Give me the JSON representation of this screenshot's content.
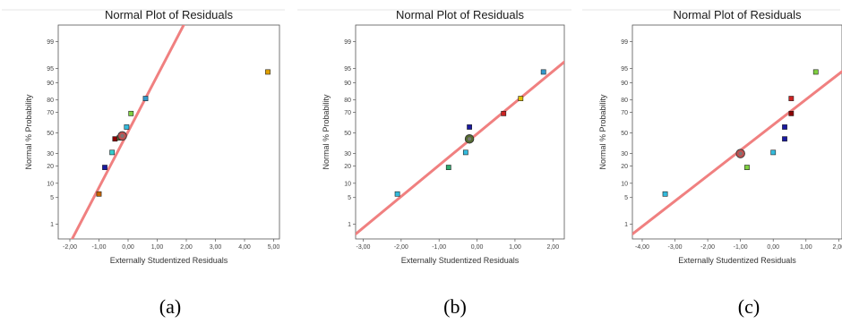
{
  "chart_data": [
    {
      "type": "scatter",
      "title": "Normal Plot of Residuals",
      "xlabel": "Externally Studentized Residuals",
      "ylabel": "Normal % Probability",
      "xlim": [
        -2.4,
        5.2
      ],
      "xticks": [
        "-2,00",
        "-1,00",
        "0,00",
        "1,00",
        "2,00",
        "3,00",
        "4,00",
        "5,00"
      ],
      "xtick_values": [
        -2,
        -1,
        0,
        1,
        2,
        3,
        4,
        5
      ],
      "yticks": [
        "1",
        "5",
        "10",
        "20",
        "30",
        "50",
        "70",
        "80",
        "90",
        "95",
        "99"
      ],
      "ytick_values": [
        1,
        5,
        10,
        20,
        30,
        50,
        70,
        80,
        90,
        95,
        99
      ],
      "grid": false,
      "line": {
        "x": [
          -2.3,
          2.0
        ],
        "p": [
          0.06,
          99.8
        ],
        "color": "#f08080"
      },
      "points": [
        {
          "x": -1.0,
          "p": 6,
          "color": "#c86400"
        },
        {
          "x": -0.8,
          "p": 19,
          "color": "#1a1aa0"
        },
        {
          "x": -0.55,
          "p": 31,
          "color": "#33cccc"
        },
        {
          "x": -0.45,
          "p": 44,
          "color": "#8b0000"
        },
        {
          "x": -0.3,
          "p": 45,
          "color": "#556b2f"
        },
        {
          "x": -0.05,
          "p": 56,
          "color": "#33bbdd"
        },
        {
          "x": 0.1,
          "p": 69,
          "color": "#7fd040"
        },
        {
          "x": 0.6,
          "p": 81,
          "color": "#3399cc"
        },
        {
          "x": 4.8,
          "p": 94,
          "color": "#e0a000"
        }
      ],
      "design_point": {
        "x": -0.2,
        "p": 47,
        "color": "#c05050"
      },
      "caption": "(a)"
    },
    {
      "type": "scatter",
      "title": "Normal Plot of Residuals",
      "xlabel": "Externally Studentized Residuals",
      "ylabel": "Normal % Probability",
      "xlim": [
        -3.2,
        2.3
      ],
      "xticks": [
        "-3,00",
        "-2,00",
        "-1,00",
        "0,00",
        "1,00",
        "2,00"
      ],
      "xtick_values": [
        -3,
        -2,
        -1,
        0,
        1,
        2
      ],
      "yticks": [
        "1",
        "5",
        "10",
        "20",
        "30",
        "50",
        "70",
        "80",
        "90",
        "95",
        "99"
      ],
      "ytick_values": [
        1,
        5,
        10,
        20,
        30,
        50,
        70,
        80,
        90,
        95,
        99
      ],
      "grid": false,
      "line": {
        "x": [
          -3.2,
          2.3
        ],
        "p": [
          0.5,
          96.5
        ],
        "color": "#f08080"
      },
      "points": [
        {
          "x": -2.1,
          "p": 6,
          "color": "#33bbdd"
        },
        {
          "x": -0.75,
          "p": 19,
          "color": "#2eaa6e"
        },
        {
          "x": -0.3,
          "p": 31,
          "color": "#33bbdd"
        },
        {
          "x": -0.2,
          "p": 56,
          "color": "#1a1aa0"
        },
        {
          "x": 0.7,
          "p": 69,
          "color": "#cc2222"
        },
        {
          "x": 1.15,
          "p": 81,
          "color": "#e0c000"
        },
        {
          "x": 1.75,
          "p": 94,
          "color": "#3399cc"
        }
      ],
      "design_point": {
        "x": -0.2,
        "p": 44,
        "color": "#556b2f"
      },
      "caption": "(b)"
    },
    {
      "type": "scatter",
      "title": "Normal Plot of Residuals",
      "xlabel": "Externally Studentized Residuals",
      "ylabel": "Normal % Probability",
      "xlim": [
        -4.3,
        2.1
      ],
      "xticks": [
        "-4,00",
        "-3,00",
        "-2,00",
        "-1,00",
        "0,00",
        "1,00",
        "2,00"
      ],
      "xtick_values": [
        -4,
        -3,
        -2,
        -1,
        0,
        1,
        2
      ],
      "yticks": [
        "1",
        "5",
        "10",
        "20",
        "30",
        "50",
        "70",
        "80",
        "90",
        "95",
        "99"
      ],
      "ytick_values": [
        1,
        5,
        10,
        20,
        30,
        50,
        70,
        80,
        90,
        95,
        99
      ],
      "grid": false,
      "line": {
        "x": [
          -4.3,
          2.3
        ],
        "p": [
          0.5,
          95.5
        ],
        "color": "#f08080"
      },
      "points": [
        {
          "x": -3.3,
          "p": 6,
          "color": "#33bbdd"
        },
        {
          "x": -0.8,
          "p": 19,
          "color": "#7fd040"
        },
        {
          "x": 0.0,
          "p": 31,
          "color": "#33bbdd"
        },
        {
          "x": 0.35,
          "p": 44,
          "color": "#1a1aa0"
        },
        {
          "x": 0.35,
          "p": 56,
          "color": "#1a1aa0"
        },
        {
          "x": 0.55,
          "p": 69,
          "color": "#8b0000"
        },
        {
          "x": 0.55,
          "p": 81,
          "color": "#cc2222"
        },
        {
          "x": 1.3,
          "p": 94,
          "color": "#7fd040"
        }
      ],
      "design_point": {
        "x": -1.0,
        "p": 30,
        "color": "#c05050"
      },
      "caption": "(c)"
    }
  ]
}
